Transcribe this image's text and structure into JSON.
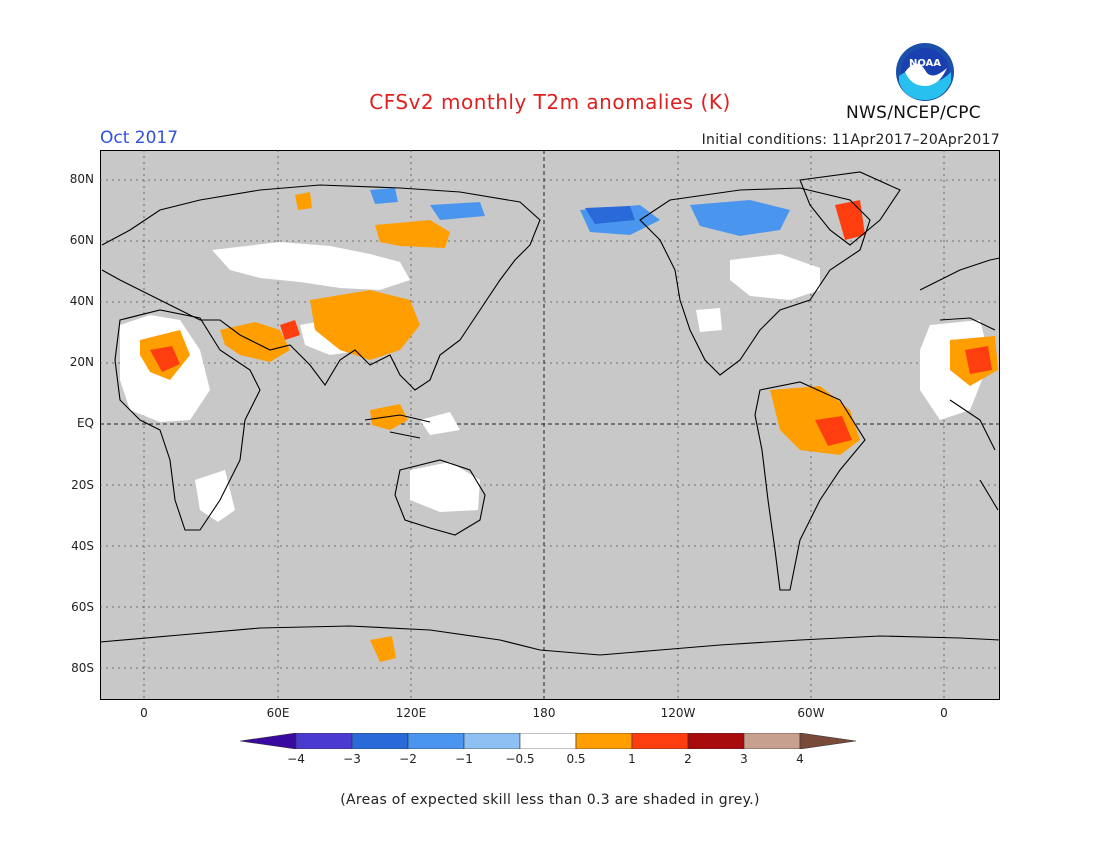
{
  "header": {
    "title": "CFSv2 monthly T2m anomalies (K)",
    "month": "Oct 2017",
    "initial_conditions": "Initial conditions: 11Apr2017–20Apr2017",
    "agency": "NWS/NCEP/CPC",
    "logo_text": "NOAA"
  },
  "map": {
    "lat_labels": [
      "80N",
      "60N",
      "40N",
      "20N",
      "EQ",
      "20S",
      "40S",
      "60S",
      "80S"
    ],
    "lon_labels": [
      "0",
      "60E",
      "120E",
      "180",
      "120W",
      "60W",
      "0"
    ]
  },
  "legend": {
    "ticks": [
      "−4",
      "−3",
      "−2",
      "−1",
      "−0.5",
      "0.5",
      "1",
      "2",
      "3",
      "4"
    ],
    "colors": [
      "#3a0aa0",
      "#4a3ad0",
      "#2a6ad8",
      "#4a96ee",
      "#8ec0f4",
      "#ffffff",
      "#ff9e00",
      "#ff3e10",
      "#a80c0c",
      "#c8a090",
      "#7a4a38"
    ]
  },
  "footnote": "(Areas of expected skill less than 0.3 are shaded in grey.)"
}
